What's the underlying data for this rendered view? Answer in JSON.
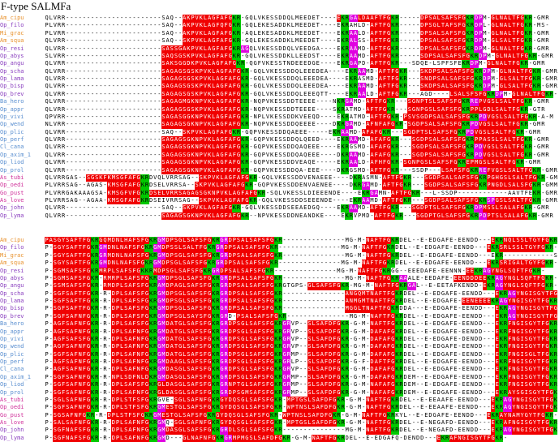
{
  "title": "F-type SALMFa",
  "label_colors": {
    "orange": "#e8922e",
    "purple": "#8a3fbf",
    "blue": "#5a8fd0",
    "magenta": "#d0309a"
  },
  "residue_colors": {
    "r": "#f00000",
    "g": "#00c800",
    "m": "#e000e0",
    "r_text": "#ffffff",
    "g_text": "#000000"
  },
  "blocks": [
    {
      "rows": [
        {
          "label": "Am_cipu",
          "color": "orange",
          "seq": "QLVRR-----------------------SAQ--AKPVKLAGFAFGKR-GQLVKESSDDQLMEEDET----EKRGALDAAFTFGKR-----DPSALSAFSFGKRDPM-GLNALTFGKR-GMR"
        },
        {
          "label": "Op_filo",
          "color": "purple",
          "seq": "PLVRR-----------------------SAQ--AKPVKLAGFQFGKR-GQLEKESADDKLMEEDET----EKRAHLD-AFTFGKR-----DPSGLTAFSFGKRDPL-GLNALTFGKR-MS-"
        },
        {
          "label": "Mi_grac",
          "color": "orange",
          "seq": "PLVRR-----------------------SAQ--AKPVKLAGFAFGKR-AQLEKESADDKLMEEDET----EKRAALD-AFTFGKR-----DPSALSAFSFGKRDPM-GLNALTFGKR-GMR"
        },
        {
          "label": "Am_squa",
          "color": "orange",
          "seq": "QLVRR-----------------------SAQ--SKPVKLAGFAFGKR-GQLEKESADDKLMEEDET----EKRALSS-AFTFGKR-----DPSALSAFSFGKRDPM-GLSALTFGKR-GMR"
        },
        {
          "label": "Op_resi",
          "color": "purple",
          "seq": "QLVRR-----------------------SASSGAKPVKLAGFAFGKRAGQLVKESSDDQLVEEDGA----EKRAAMD-AFTFGKR-----DPSALSAFSFGKRDPM-GLNALTFGKR-GMR"
        },
        {
          "label": "Op_abys",
          "color": "purple",
          "seq": "SLVRR-----------------------SAQSGSKPVKLAGFAFGKR-GQLVKESSDDKLLEEDST----EKRAAMD-AFTFGKR-----SDPSALSAFSFGKRDPM-GLNALTFGKR-GMR"
        },
        {
          "label": "Op_angu",
          "color": "purple",
          "seq": "QLVRR-----------------------SAKSGGDKPVKLAGFAFGKR-QGFVKESSTNDEEEDGE----EKRGAPD-AFTFGKR---SDQE-LSPFSFEKRDPM-GLNALTFGKR-GMR"
        },
        {
          "label": "Op_scha",
          "color": "purple",
          "seq": "QLVRR-----------------------SAGAGSGSKPVKLAGFAFGKR-GQLVKESSDDQLEEEDEA----EKRAAMD-AFTFGKR---SKDPSALSAFSFGKRDPM-GLNALTFGKR-GMR"
        },
        {
          "label": "Op_lama",
          "color": "purple",
          "seq": "QLVRR-----------------------SAGAGSGSKPVKLAGFAFGKR-GQLVKESSDDQLEEEDEA----EKRASMD-AFTFGKR---SNDPSALSAFSFGKRDPM-GLSALTFGKR-GMR"
        },
        {
          "label": "Op_bisp",
          "color": "purple",
          "seq": "QLVRR-----------------------SAGAGSGSKPVKLAGFAFGKR-GQLVKESSDDQLEEEDEA----EKRAAMD-AFTFGKR---SKDPSALSAFSFGKRDPM-GLSALTFGKR-GMR"
        },
        {
          "label": "Op_brev",
          "color": "purple",
          "seq": "QLVRR-----------------------SAGAGSGSKPVKLAGFAFGKR-GQLVKESSDDQLEEEQTT----EKRAALD-AFTFGKR---AGD----LSALSFSFGKRDPM-GLNALTFGKR-GMR"
        },
        {
          "label": "Ba_hero",
          "color": "blue",
          "seq": "QLVRR-----------------------SAGAGMGKNPVKLAGFAFGKR-NQPVKESSDDTEEEE----NKRGAMD-AFTFGKR---SGNPTSLSAFSFGKRREPVGSLSALTFGKR-GMR"
        },
        {
          "label": "Op_appr",
          "color": "blue",
          "seq": "QLVRR-----------------------SAGAGSGSKPVKLAGFAFGKR-NQPVKESSDDTEEEE----SKRATMD-AFTFGKR---SGNPGSLSAFSFGKRPPLGDLSALTFGKR-GTR"
        },
        {
          "label": "Op_vivi",
          "color": "blue",
          "seq": "QPVRR-----------------------SAGASGGKNPVKLAGFAFGKR-NPLVKESSDDKVEEQD----EKRATMD-AFTFGKR-PSVSGDPSALSAFSFGKRPDVGSLSALTFGKR-A-M"
        },
        {
          "label": "Op_wend",
          "color": "blue",
          "seq": "NLVRR-----------------------SAGAGSGKNPVKLAGFAFGKR-NQPVKESSDDQEEEE----DKRGAMD-AFNFAFGKR-SGDPSALSAFSFGKRPDVGSLSALTFGKR-GMR"
        },
        {
          "label": "Op_plic",
          "color": "blue",
          "seq": "QLVRR-----------------------SAQ--SKPVKLAGFAFGKR-GQPVKESSDDQAEEE-----EKRAAMD-AFAFGKR---SGDPTSLSAFSFGKRPDVGSLSALTFGKR-GMR"
        },
        {
          "label": "Op_perf",
          "color": "blue",
          "seq": "QLVRR-----------------------SAGAGSGKNPVKLAGFAFGKR-GQPVKESSDDQLQEED----EKRAAMD-AFAFGKR---SGDPSALSAFSFGKRPPASSLSALTFGKR-GMR"
        },
        {
          "label": "Cl_cana",
          "color": "blue",
          "seq": "QLVRR-----------------------SAGAGSGKNPVKLAGFAFGKR-GQPVKESSDDQAQEEE----EKRGSMD-AFAFGKR---SGDPSALSAFSFGKRPDVGSLSALTFGKR-GMR"
        },
        {
          "label": "Op_axim_1",
          "color": "blue",
          "seq": "QLVRR-----------------------SAGAGSGKNPVKLAGFAFGKR-GQPVKESSDDQAQEEE----DKRAAMD-AFAFGKR---SGDPSALSAFSFGKRPDVGSLSALTFGKR-GMR"
        },
        {
          "label": "Op_liod",
          "color": "blue",
          "seq": "QLVRR-----------------------SAGAGSGKNPVKLAGFAFGKR-GQPVKESSDDVEAQE-----EKRAALD-AFHFGKR-SGNPGSLSAFSFGKREPMGSLSALTFGKR-GMR"
        },
        {
          "label": "Op_prol",
          "color": "blue",
          "seq": "QLVRR-----------------------SAGAGSGKNPVKLAGFAFGKR-GQPVKESSDDQA-EEE----DKRGSMD-AFTFGKR---SSDP---LSAFSFGKRREFVGSLSALTFGKR-GMR"
        },
        {
          "label": "As_tubi",
          "color": "magenta",
          "seq": "QLVRRGAS--SGSKFKMSGFAFGKRDVQLVRRSAG--SKPVKLAGFAFGKR-GQLVKESSDDVENAEEE----DKRASMN-AFTFGKR---SGDPSALSAFSFGKRPGHGSLSALTFGKR-GMY"
        },
        {
          "label": "Op_oedi",
          "color": "magenta",
          "seq": "PLVRRSAG--AGAS-KMSGFAFGKRDSELVRRSA--SKPVKLAGFAFGKR-GQPVKESSDDENVAENEE----DKRGAMD-AFTFGKR---SGDPSALSAFSFGKRPNGDLSALSFGKR-GMM"
        },
        {
          "label": "Go_pust",
          "color": "magenta",
          "seq": "PLVRRGAKAAAGSA-KMSGFVFGKRDSELVRRSAGAGSGKNPVKLAGFAFGKR-SQLVKESSLDIEEENDE----EKRGAMN-AFTFGKR---L-SSDP------------AAVTFEKR-GMR"
        },
        {
          "label": "As_love",
          "color": "magenta",
          "seq": "PLVRRSAG--AGAA-KMSGFAFGKRDSEIVRRSAG--SKPVKLAGFAFGKR-GQLVKESSDDSEEENDE----EKRAAMD-AFTFGKR---SGDPSALSAFSFGKRSPGSLSALTFGKR-GMR"
        },
        {
          "label": "Op_john",
          "color": "purple",
          "seq": "QLVRR-----------------------SAQ--SKPVKLAGFAFGKR-GQLVKESSDDSEEAEDGQ----EKRAAMD-AFTFGKR---SGDPTSLSAFSFGKRDPMSSLSALAFGKR-GMR"
        },
        {
          "label": "Op_lyma",
          "color": "purple",
          "seq": "QLVRR-----------------------SAGAGSGKNPVKLAGFAFGKR--NPVKESSDDNEANDKE----EKRVPMD-AFTFGKR---SGDPTGLSAFSFGKRPDPTSLSALAFGKR-GMR"
        }
      ]
    },
    {
      "rows": [
        {
          "label": "Am_cipu",
          "color": "orange",
          "seq": "PASGYSAFTFGKRGQMDNLHAFSFGKRGMDPSGLSAFSFGKRGRDPSALSAFSFGKR---------------MG-M-NAFTFGKRDEL--E-EDGAFE-EENDD---EKRNQLSSLTGYFGKR-"
        },
        {
          "label": "Op_filo",
          "color": "purple",
          "seq": "P-SGYSAFTFGKRGMDNLNAFSFGKRGMDPSSLSALTFGKRGRDPSALSAFSFGKR---------------MG-M-NAFTFGKRDEL--E-EDGAFE-EENDD---EKRSRLSSLTGYFGKR-"
        },
        {
          "label": "Mi_grac",
          "color": "orange",
          "seq": "P-SGYSAFTFGKRGRMDNLNAFSFGKRGMDPSGLSAFSFGKRGRDPSALSAFSFGKR---------------MG-M-NAFTFGKRDEL--E-EDGAFE-EENDD---EKR------------SYSKR"
        },
        {
          "label": "Am_squa",
          "color": "orange",
          "seq": "P-SGYSAFTFGKRGMDNLNAFSFGKRGMDPSGLSAFSFGKRGRDPSALSAFSFGKR---------------MG-M-NAFTFGKRDEL--E-EDGAFE-EENDD---EKRSRIGALTGYFGKR-"
        },
        {
          "label": "Op_resi",
          "color": "purple",
          "seq": "P-SGMSAFSFGKRMRPLSAFSFGKKRMDPSGLSAFSFGKRGRDPSALSAFSFGKR---------------MG-M-NAFTFGKRGG--EEEDAFE-EENNN-EEKRAGYNGLSQFTFGKR-"
        },
        {
          "label": "Op_abys",
          "color": "purple",
          "seq": "P-SGMSAFSFGKR-RMRPLSAFSFGKRGMDPSGLSAFSFGKRGRDPSALSAFSFGKR---------------MG-M-NAFTFGKRAAALE-EEDAFE-EENDDDEEKRAGYNGLSQFTFGKR-"
        },
        {
          "label": "Op_angu",
          "color": "purple",
          "seq": "P-SSMSAFSFGKR-RMDPLSAFSFGKRAMDPAGLSAFSFGKRGRDPSALSAFSFGKRGTGPS-GLSAFSFGKR-MG-M-NAFTFGKRGAL--E-EETAFKENDD-EKRAGYNGLSQFTFGKR-"
        },
        {
          "label": "Op_scha",
          "color": "purple",
          "seq": "P-SGFSAFTFGKR-R-DPLSAFSFGKRGMDPSGLSAFSFGKRGRDPSALSAFSFGKR---------------ANGQMTNAFTFGKRDEL--E-EDGAFE-EENDD---EKRAGYNGISGYTFGKR-"
        },
        {
          "label": "Op_lama",
          "color": "purple",
          "seq": "P-SGFSAFTFGKR-R-DPLSAFSFGKRGMDPSGLSAFSFGKRGRDPSALSAFSFGKR---------------ANMGMTNAFTFGKRDEL--E-EDGAFE-EENEEEEKRAGYNGISGYTFGKR-"
        },
        {
          "label": "Op_bisp",
          "color": "purple",
          "seq": "P-SGFSAFTFGKR-R-DPLSAFSFGKRGMDPSGLSAFSFGKRGRDPSALSAFSFGKR---------------MGGLTNAFTFGKRDDA---E-EDGAFE-EENDD---EKRAGYNGISGYTFGKR-"
        },
        {
          "label": "Op_brev",
          "color": "purple",
          "seq": "P-SGFSAFNFGKR-R-DPLSAFSFGKRGMDPSGLSAYSFGKRGRD-PSALSAFSFGKR---------------MG-M-NAFTFGKRDEL--E-EDGAFE-EENDD---EKRAGYNGISGYTFGKR-"
        },
        {
          "label": "Ba_hero",
          "color": "blue",
          "seq": "P-AGFSAFNFGKR-R-DPLSAFSFGKRGMDATGLSAFSFGKRGRDPSGLSAFSFGKRGRVP--SLSAFDFGKR-G-M-NAFTFGKRDEL--E-EDGAFE-EENDD---EKRFNGISGYTFGKR-"
        },
        {
          "label": "Op_appr",
          "color": "blue",
          "seq": "P-AGFSAFNFGKR-R-DPLSAFNFGKRGMDATGLSAFSFGKRGRDPSGLSAFSFGKRGRVP--SLSAFDFGKR-G-M-DAFAFGKRDEL--E-EDGAFE-EENDD---EKRFNGISGYTFGKR-"
        },
        {
          "label": "Op_vivi",
          "color": "blue",
          "seq": "P-AGFSAFSFGKR-R-DPLSAFNFGKRGMDATGLSAFSFGKRGRDPSGLSAFSFGKRGRVP--SLSAFDFGKR-G-M-DAFAFGKRDEL--E-EDGAFE-DENDD---EKRFNGISGYTFGKR-"
        },
        {
          "label": "Op_wend",
          "color": "blue",
          "seq": "P-AGFSAFNFGKR-R-DPLSAFNFGKRGMDATGLSAFSFGKRGRDPSGLSAFSFGKRGRVP--SLSAFDFGKR-G-M-DAFAFGKRDEL--E-EDGAFE-EENDD---EKRFNGISGYTFGKR-"
        },
        {
          "label": "Op_plic",
          "color": "blue",
          "seq": "P-SGFSAFNFGKR-R-DPLSAFNFGKRGMDATGLSAFSFGKRGRDPSGLSAFSFGKRGRMP--SLSAFDFGKR-G-M-DAFAFGKRDEL--E-EDGAFE-EENDD---EKRFNGISGLTFGKR-"
        },
        {
          "label": "Op_perf",
          "color": "blue",
          "seq": "P-AGFSAFNFGKR-R-DPLSAFNFGKRGMDAAGLSAFSFGKRGRDPSGLSAFSFGKRGRLP--SLSAFDFGKR-G-F-DAFTFGKRDEL--E-EDGAFE-EENDD---EKRFNGISGYTFGKR-"
        },
        {
          "label": "Cl_cana",
          "color": "blue",
          "seq": "P-AGFSAFNFGKR-R-DPLSAFNFGKRGMDASGLSAFSFGKRGRDPSGLSAFSFGKRGRVP--SLSAFDFGKR-G-M-DAFAFGKRDEL--E-EDGAFE-EENDD---EKRFNGISGYTFGKR-"
        },
        {
          "label": "Op_axim_1",
          "color": "blue",
          "seq": "P-SGFSAFNFGKR-R-NPLSDFNLDKRGMDASGLSAFSFGKRGRDPSGLSAFSFGKRGRMP--SLSAFDFGKR-G-M-DAFAFGKRDEM--E-EDGAFE-EENDD---EKRFNGISGYTFGKR-"
        },
        {
          "label": "Op_liod",
          "color": "blue",
          "seq": "P-SGFSAFNFGKR-R-DPLSAFSFGKRGLDASGLSAFSFGKRGRNPTGLSAFSFGKRGRMP--SLSAFDFGKR-G-M-NAFAFGKRDEM--E-EDGAFE-EENDD---EKRFNGISGYTFGKR-"
        },
        {
          "label": "Op_prol",
          "color": "blue",
          "seq": "P-SGFSAFNFGKR-R-DPLSAFNFGKRGLDASGLSAFSFGKRGRDPSGMSAFSFGKRGRMP--SLSAFDFGKR-G-M-NAFAFGKRDEM--E-EDGAFE-EENDD---EKRAYSGISGYTFGKR-"
        },
        {
          "label": "As_tubi",
          "color": "magenta",
          "seq": "P-SGLSAFNFGKR-R-DPLSTFSFGKRGVE-SGLSAFNFGKRGYDQSGLSAFSFGKR-MPTGSLSAFDFGKR-G-M-NAFTFGKRDEL--E-EEAAFE-EENDD---EKRAGYNGISGYTFGKR-"
        },
        {
          "label": "Op_oedi",
          "color": "magenta",
          "seq": "P-SGFSAFNFGKR-R-DPLSTFSFGKRGMESTGLSAFSFGKRGYDQSGLSAFSFGKR-WPTNSLSAFDFGKR-G-M-NAFTFGKRDEL--E-EEAAFE-EENDD---EKRAGYNGISQYTFGKR-"
        },
        {
          "label": "Go_pust",
          "color": "magenta",
          "seq": "P-SGSAFNFGKR-R-DPLSTFSFGKRGMESTGLSAFSFGKRGYDQSGLSAFSFGKR-WPTNSLSAFDFGKR-G-M-NAFTFGKRKYL--E-EDGAFE-EENDD---EKRAYNAMYGYTFGKR-"
        },
        {
          "label": "As_love",
          "color": "magenta",
          "seq": "P-SALSAFNFGKR-R-DPLSAFNFGKRGMQ-SGLSAFNFGKRGYDQSGLSAFSFGKR-MPTGSLSAFDFGKR-G-M-NAFTFGKRDEL--E-NEGAFD-EENDD---EKRAFNGISGYTFGKR-"
        },
        {
          "label": "Op_john",
          "color": "purple",
          "seq": "P-SGFNAFSFGKR-R-DPLSAFNFGKRGMDASGLSAFSFGKRGRDLSGLSAFSFGKR---------------MG-M-NAFTFGKRDEL--E-NEGAFD-EENDD---EKRAGYNGISGYTFGKR-"
        },
        {
          "label": "Op_lyma",
          "color": "purple",
          "seq": "P-SGFNAFSFGKR-R-DPLSAFNFGKRGMD---GLNAFNFGKRGRMPMGSLSAFDFGKR-G-M-NAFTFGKRDEL--E-EDGAFQ-DENDD---EKRAFNGISGYTFGKR-"
        }
      ]
    }
  ]
}
